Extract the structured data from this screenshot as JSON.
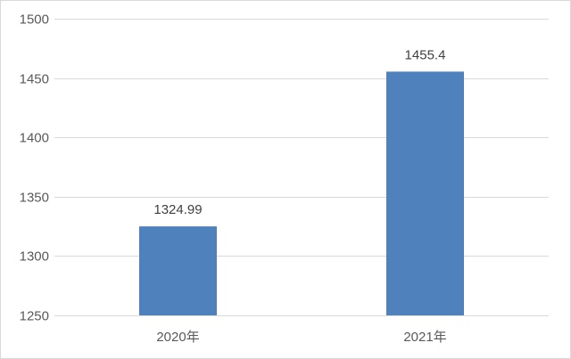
{
  "chart_data": {
    "type": "bar",
    "categories": [
      "2020年",
      "2021年"
    ],
    "values": [
      1324.99,
      1455.4
    ],
    "data_labels": [
      "1324.99",
      "1455.4"
    ],
    "ylim": [
      1250,
      1500
    ],
    "y_ticks": [
      1250,
      1300,
      1350,
      1400,
      1450,
      1500
    ],
    "y_tick_labels": [
      "1250",
      "1300",
      "1350",
      "1400",
      "1450",
      "1500"
    ],
    "grid": true,
    "legend": "none",
    "bar_color": "#4f81bd",
    "gridline_color": "#d9d9d9",
    "label_color": "#595959"
  }
}
